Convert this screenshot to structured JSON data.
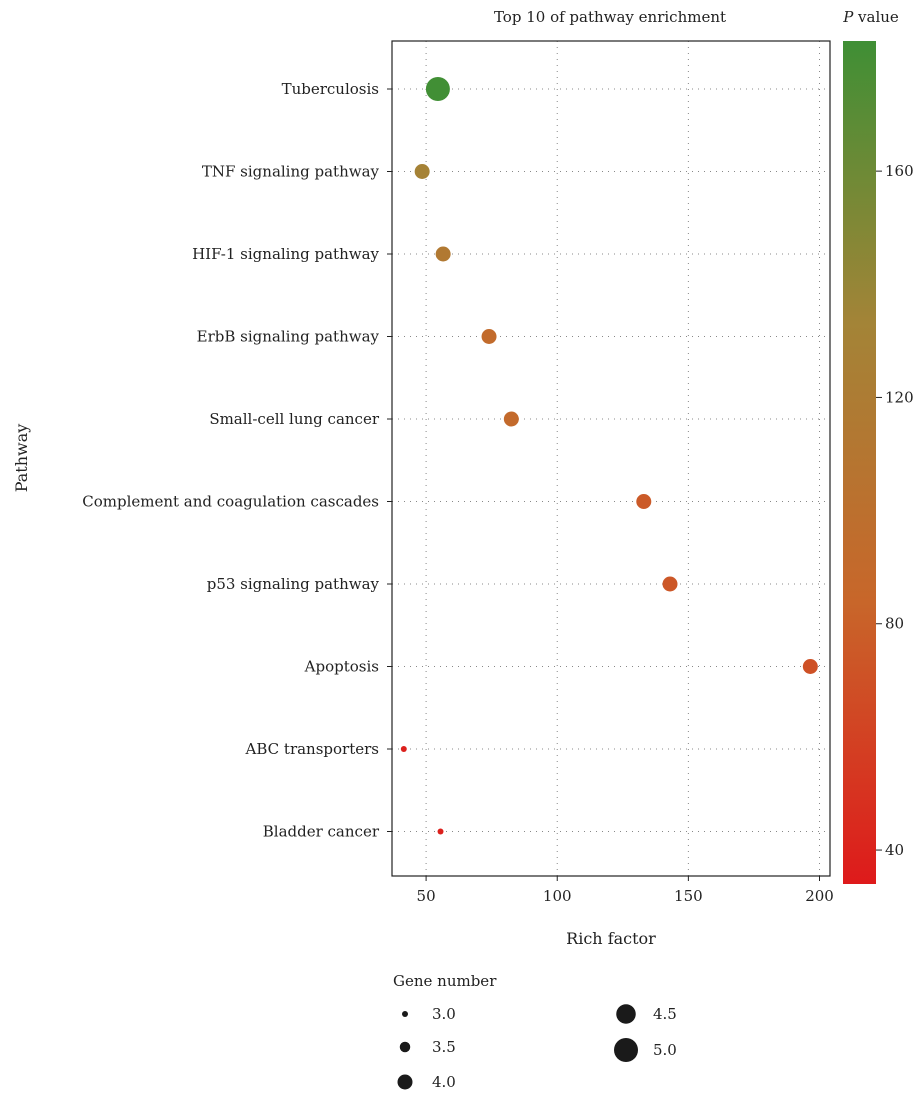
{
  "chart_data": {
    "type": "scatter",
    "title": "Top 10 of pathway enrichment",
    "xlabel": "Rich factor",
    "ylabel": "Pathway",
    "xlim": [
      37,
      204
    ],
    "xticks": [
      50,
      100,
      150,
      200
    ],
    "grid": true,
    "categories": [
      "Tuberculosis",
      "TNF signaling pathway",
      "HIF-1 signaling pathway",
      "ErbB signaling pathway",
      "Small-cell lung cancer",
      "Complement and coagulation cascades",
      "p53 signaling pathway",
      "Apoptosis",
      "ABC transporters",
      "Bladder cancer"
    ],
    "points": [
      {
        "pathway": "Tuberculosis",
        "rich_factor": 54.5,
        "gene_number": 5.0,
        "p_value": 182
      },
      {
        "pathway": "TNF signaling pathway",
        "rich_factor": 48.5,
        "gene_number": 4.0,
        "p_value": 130
      },
      {
        "pathway": "HIF-1 signaling pathway",
        "rich_factor": 56.5,
        "gene_number": 4.0,
        "p_value": 115
      },
      {
        "pathway": "ErbB signaling pathway",
        "rich_factor": 74,
        "gene_number": 4.0,
        "p_value": 92
      },
      {
        "pathway": "Small-cell lung cancer",
        "rich_factor": 82.5,
        "gene_number": 4.0,
        "p_value": 90
      },
      {
        "pathway": "Complement and coagulation cascades",
        "rich_factor": 133,
        "gene_number": 4.0,
        "p_value": 76
      },
      {
        "pathway": "p53 signaling pathway",
        "rich_factor": 143,
        "gene_number": 4.0,
        "p_value": 74
      },
      {
        "pathway": "Apoptosis",
        "rich_factor": 196.5,
        "gene_number": 4.0,
        "p_value": 70
      },
      {
        "pathway": "ABC transporters",
        "rich_factor": 41.5,
        "gene_number": 3.0,
        "p_value": 38
      },
      {
        "pathway": "Bladder cancer",
        "rich_factor": 55.5,
        "gene_number": 3.0,
        "p_value": 38
      }
    ],
    "color_scale": {
      "title_italic": "P",
      "title_rest": " value",
      "range": [
        34,
        183
      ],
      "ticks": [
        40,
        80,
        120,
        160
      ],
      "colors": [
        "#de1a1b",
        "#c8662a",
        "#a38437",
        "#3f8f35"
      ]
    },
    "size_legend": {
      "title": "Gene number",
      "items": [
        3.0,
        3.5,
        4.0,
        4.5,
        5.0
      ],
      "labels": [
        "3.0",
        "3.5",
        "4.0",
        "4.5",
        "5.0"
      ]
    },
    "legend_position": "right and bottom"
  }
}
